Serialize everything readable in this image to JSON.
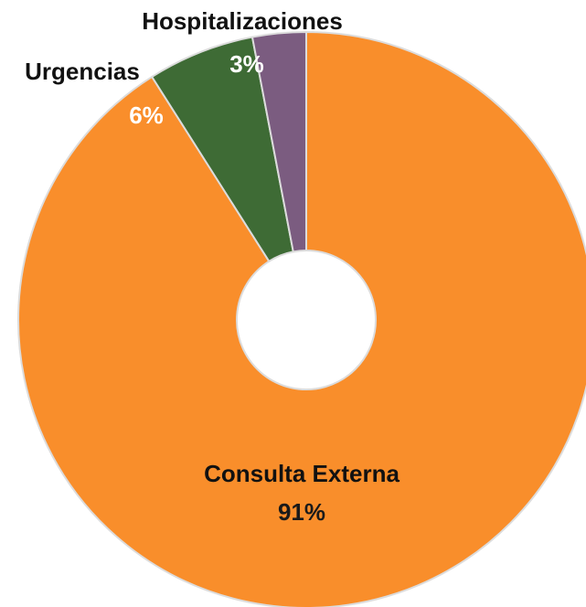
{
  "chart_data": {
    "type": "pie",
    "categories": [
      "Consulta Externa",
      "Urgencias",
      "Hospitalizaciones"
    ],
    "values": [
      91,
      6,
      3
    ],
    "value_labels": [
      "91%",
      "6%",
      "3%"
    ],
    "colors": [
      "#f98e2b",
      "#3e6b35",
      "#7b5c80"
    ],
    "donut": true
  }
}
